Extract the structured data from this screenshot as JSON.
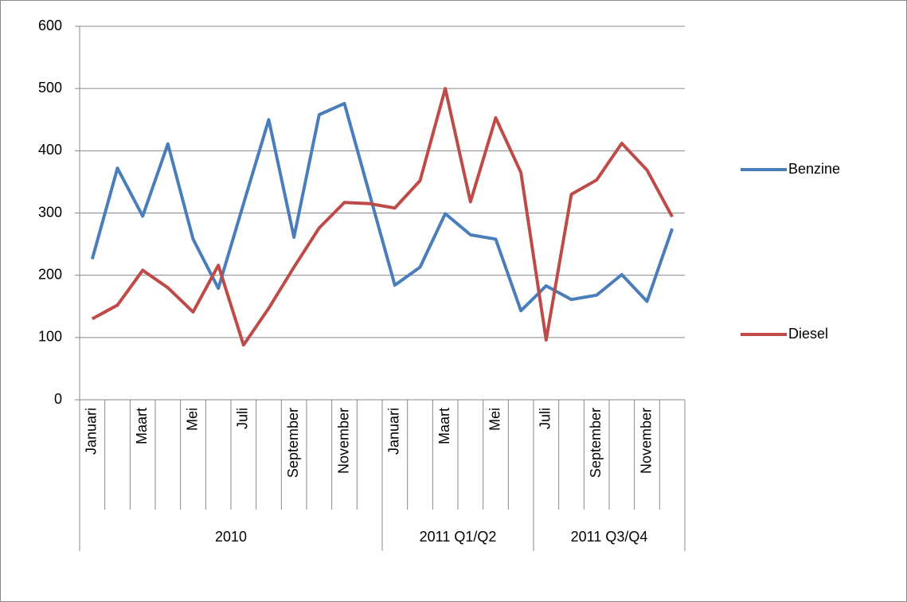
{
  "chart_data": {
    "type": "line",
    "category_groups": [
      {
        "label": "2010",
        "categories": [
          "Januari",
          null,
          "Maart",
          null,
          "Mei",
          null,
          "Juli",
          null,
          "September",
          null,
          "November",
          null
        ]
      },
      {
        "label": "2011 Q1/Q2",
        "categories": [
          "Januari",
          null,
          "Maart",
          null,
          "Mei",
          null
        ]
      },
      {
        "label": "2011 Q3/Q4",
        "categories": [
          "Juli",
          null,
          "September",
          null,
          "November",
          null
        ]
      }
    ],
    "series": [
      {
        "name": "Benzine",
        "color": "#4a7ebb",
        "values": [
          226,
          372,
          295,
          411,
          258,
          179,
          315,
          450,
          261,
          458,
          476,
          330,
          184,
          213,
          299,
          265,
          258,
          143,
          183,
          161,
          168,
          201,
          158,
          275
        ]
      },
      {
        "name": "Diesel",
        "color": "#be4b48",
        "values": [
          130,
          152,
          208,
          180,
          141,
          216,
          88,
          147,
          213,
          276,
          317,
          315,
          308,
          352,
          500,
          318,
          453,
          365,
          96,
          330,
          353,
          412,
          369,
          294
        ]
      }
    ],
    "ylim": [
      0,
      600
    ],
    "yticks": [
      0,
      100,
      200,
      300,
      400,
      500,
      600
    ],
    "grid": true,
    "legend": "right"
  }
}
